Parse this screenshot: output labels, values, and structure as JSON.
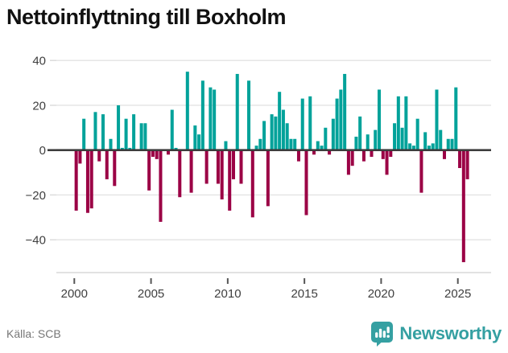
{
  "title": "Nettoinflyttning till Boxholm",
  "source": "Källa: SCB",
  "brand": {
    "name": "Newsworthy",
    "icon": "bar-chart-speech-bubble"
  },
  "colors": {
    "positive": "#00a29a",
    "negative": "#9b0145",
    "zero_line": "#3d3d3d",
    "grid": "#e3e3e3",
    "plot_border": "#d9d9d9",
    "tick": "#555555",
    "axis_text": "#3f3f3f",
    "title_text": "#111111",
    "source_text": "#767676",
    "brand_teal": "#35a0a2"
  },
  "chart_data": {
    "type": "bar",
    "title": "Nettoinflyttning till Boxholm",
    "frequency": "quarterly",
    "start_period": "2000-Q1",
    "end_period": "2025-Q3",
    "values": [
      -27,
      -6,
      14,
      -28,
      -26,
      17,
      -5,
      16,
      -13,
      5,
      -16,
      20,
      1,
      14,
      1,
      16,
      0,
      12,
      12,
      -18,
      -3,
      -4,
      -32,
      0,
      -2,
      18,
      1,
      -21,
      0,
      35,
      -19,
      11,
      7,
      31,
      -15,
      28,
      27,
      -15,
      -22,
      4,
      -27,
      -13,
      34,
      -15,
      0,
      31,
      -30,
      2,
      5,
      13,
      -25,
      16,
      15,
      26,
      18,
      12,
      5,
      5,
      -5,
      23,
      -29,
      24,
      -2,
      4,
      2,
      10,
      -2,
      14,
      23,
      27,
      34,
      -11,
      -7,
      6,
      15,
      -5,
      7,
      -3,
      9,
      27,
      -4,
      -11,
      -3,
      12,
      24,
      10,
      24,
      3,
      2,
      14,
      -19,
      8,
      2,
      3,
      27,
      9,
      -4,
      5,
      5,
      28,
      -8,
      -50,
      -13
    ],
    "x_tick_years": [
      2000,
      2005,
      2010,
      2015,
      2020,
      2025
    ],
    "y_ticks": [
      40,
      20,
      0,
      -20,
      -40
    ],
    "ylim": [
      -55,
      44
    ],
    "grid": "horizontal",
    "legend": "none"
  }
}
